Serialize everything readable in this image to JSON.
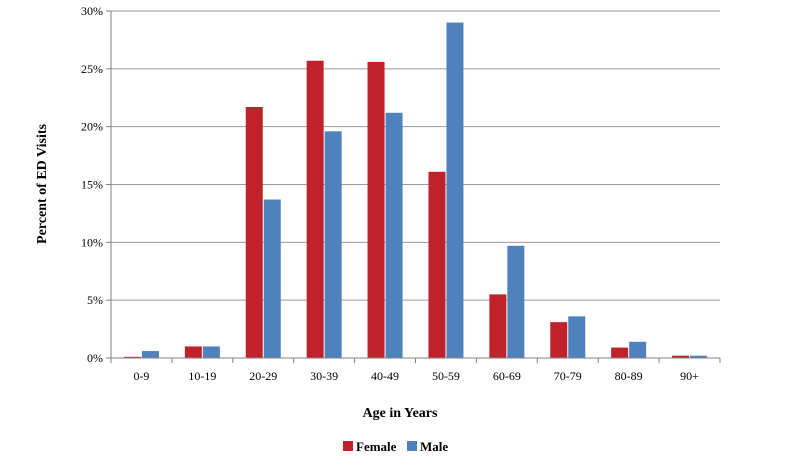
{
  "chart_data": {
    "type": "bar",
    "title": "",
    "xlabel": "Age in Years",
    "ylabel": "Percent of ED Visits",
    "categories": [
      "0-9",
      "10-19",
      "20-29",
      "30-39",
      "40-49",
      "50-59",
      "60-69",
      "70-79",
      "80-89",
      "90+"
    ],
    "series": [
      {
        "name": "Female",
        "color": "#c0222c",
        "values": [
          0.1,
          1.0,
          21.7,
          25.7,
          25.6,
          16.1,
          5.5,
          3.1,
          0.9,
          0.2
        ]
      },
      {
        "name": "Male",
        "color": "#4f81bd",
        "values": [
          0.6,
          1.0,
          13.7,
          19.6,
          21.2,
          29.0,
          9.7,
          3.6,
          1.4,
          0.2
        ]
      }
    ],
    "ylim": [
      0,
      30
    ],
    "yticks": [
      "0%",
      "5%",
      "10%",
      "15%",
      "20%",
      "25%",
      "30%"
    ],
    "grid": true,
    "legend": "bottom"
  }
}
